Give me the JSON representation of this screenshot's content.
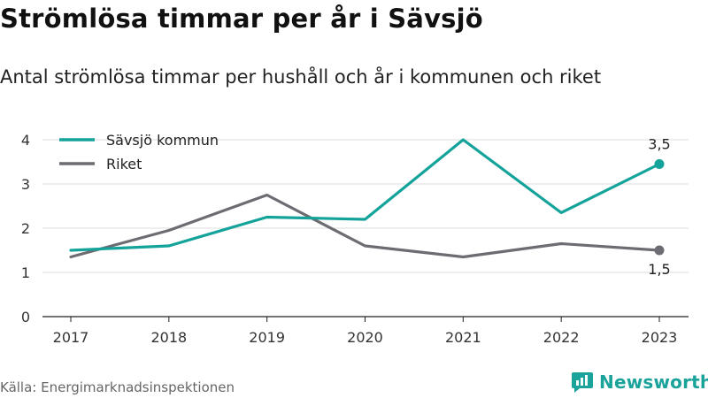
{
  "title": "Strömlösa timmar per år i Sävsjö",
  "subtitle": "Antal strömlösa timmar per hushåll och år i kommunen och riket",
  "source": "Källa: Energimarknadsinspektionen",
  "brand": "Newsworthy",
  "colors": {
    "sävsjö": "#14a39a",
    "riket": "#6d6c72",
    "grid": "#dddddd",
    "brand": "#1aa39a"
  },
  "chart_data": {
    "type": "line",
    "title": "Strömlösa timmar per år i Sävsjö",
    "subtitle": "Antal strömlösa timmar per hushåll och år i kommunen och riket",
    "xlabel": "",
    "ylabel": "",
    "x": [
      "2017",
      "2018",
      "2019",
      "2020",
      "2021",
      "2022",
      "2023"
    ],
    "yticks": [
      0,
      1,
      2,
      3,
      4
    ],
    "ylim": [
      0,
      4
    ],
    "grid": true,
    "legend": "top-left",
    "series": [
      {
        "name": "Sävsjö kommun",
        "values": [
          1.5,
          1.6,
          2.25,
          2.2,
          4.0,
          2.35,
          3.45
        ],
        "color": "#14a39a",
        "end_label": "3,5"
      },
      {
        "name": "Riket",
        "values": [
          1.35,
          1.95,
          2.75,
          1.6,
          1.35,
          1.65,
          1.5
        ],
        "color": "#6d6c72",
        "end_label": "1,5"
      }
    ]
  }
}
